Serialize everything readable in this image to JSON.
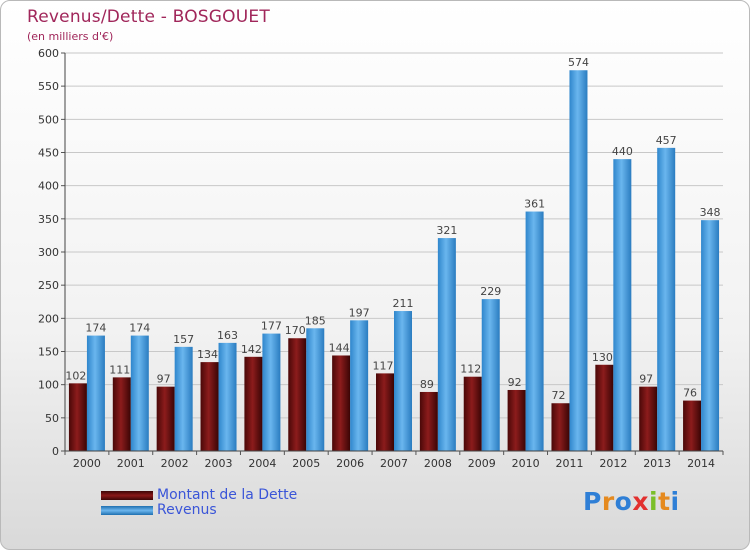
{
  "header": {
    "title": "Revenus/Dette - BOSGOUET",
    "subtitle": "(en milliers d'€)"
  },
  "colors": {
    "dette": "#7a1010",
    "revenus": "#3f98dc",
    "title": "#a0265a",
    "legend_text": "#3a55d8",
    "grid": "#c8c8c8",
    "axis_text": "#333333"
  },
  "legend": {
    "items": [
      {
        "label": "Montant de la Dette",
        "color": "#6a0f0f"
      },
      {
        "label": "Revenus",
        "color": "#3f98dc"
      }
    ]
  },
  "logo": {
    "text": "Proxiti"
  },
  "chart_data": {
    "type": "bar",
    "title": "Revenus/Dette - BOSGOUET",
    "ylabel": "(en milliers d'€)",
    "xlabel": "",
    "categories": [
      "2000",
      "2001",
      "2002",
      "2003",
      "2004",
      "2005",
      "2006",
      "2007",
      "2008",
      "2009",
      "2010",
      "2011",
      "2012",
      "2013",
      "2014"
    ],
    "series": [
      {
        "name": "Montant de la Dette",
        "values": [
          102,
          111,
          97,
          134,
          142,
          170,
          144,
          117,
          89,
          112,
          92,
          72,
          130,
          97,
          76
        ]
      },
      {
        "name": "Revenus",
        "values": [
          174,
          174,
          157,
          163,
          177,
          185,
          197,
          211,
          321,
          229,
          361,
          574,
          440,
          457,
          348
        ]
      }
    ],
    "ylim": [
      0,
      600
    ],
    "yticks": [
      0,
      50,
      100,
      150,
      200,
      250,
      300,
      350,
      400,
      450,
      500,
      550,
      600
    ],
    "grid": true,
    "legend_position": "bottom-left"
  }
}
